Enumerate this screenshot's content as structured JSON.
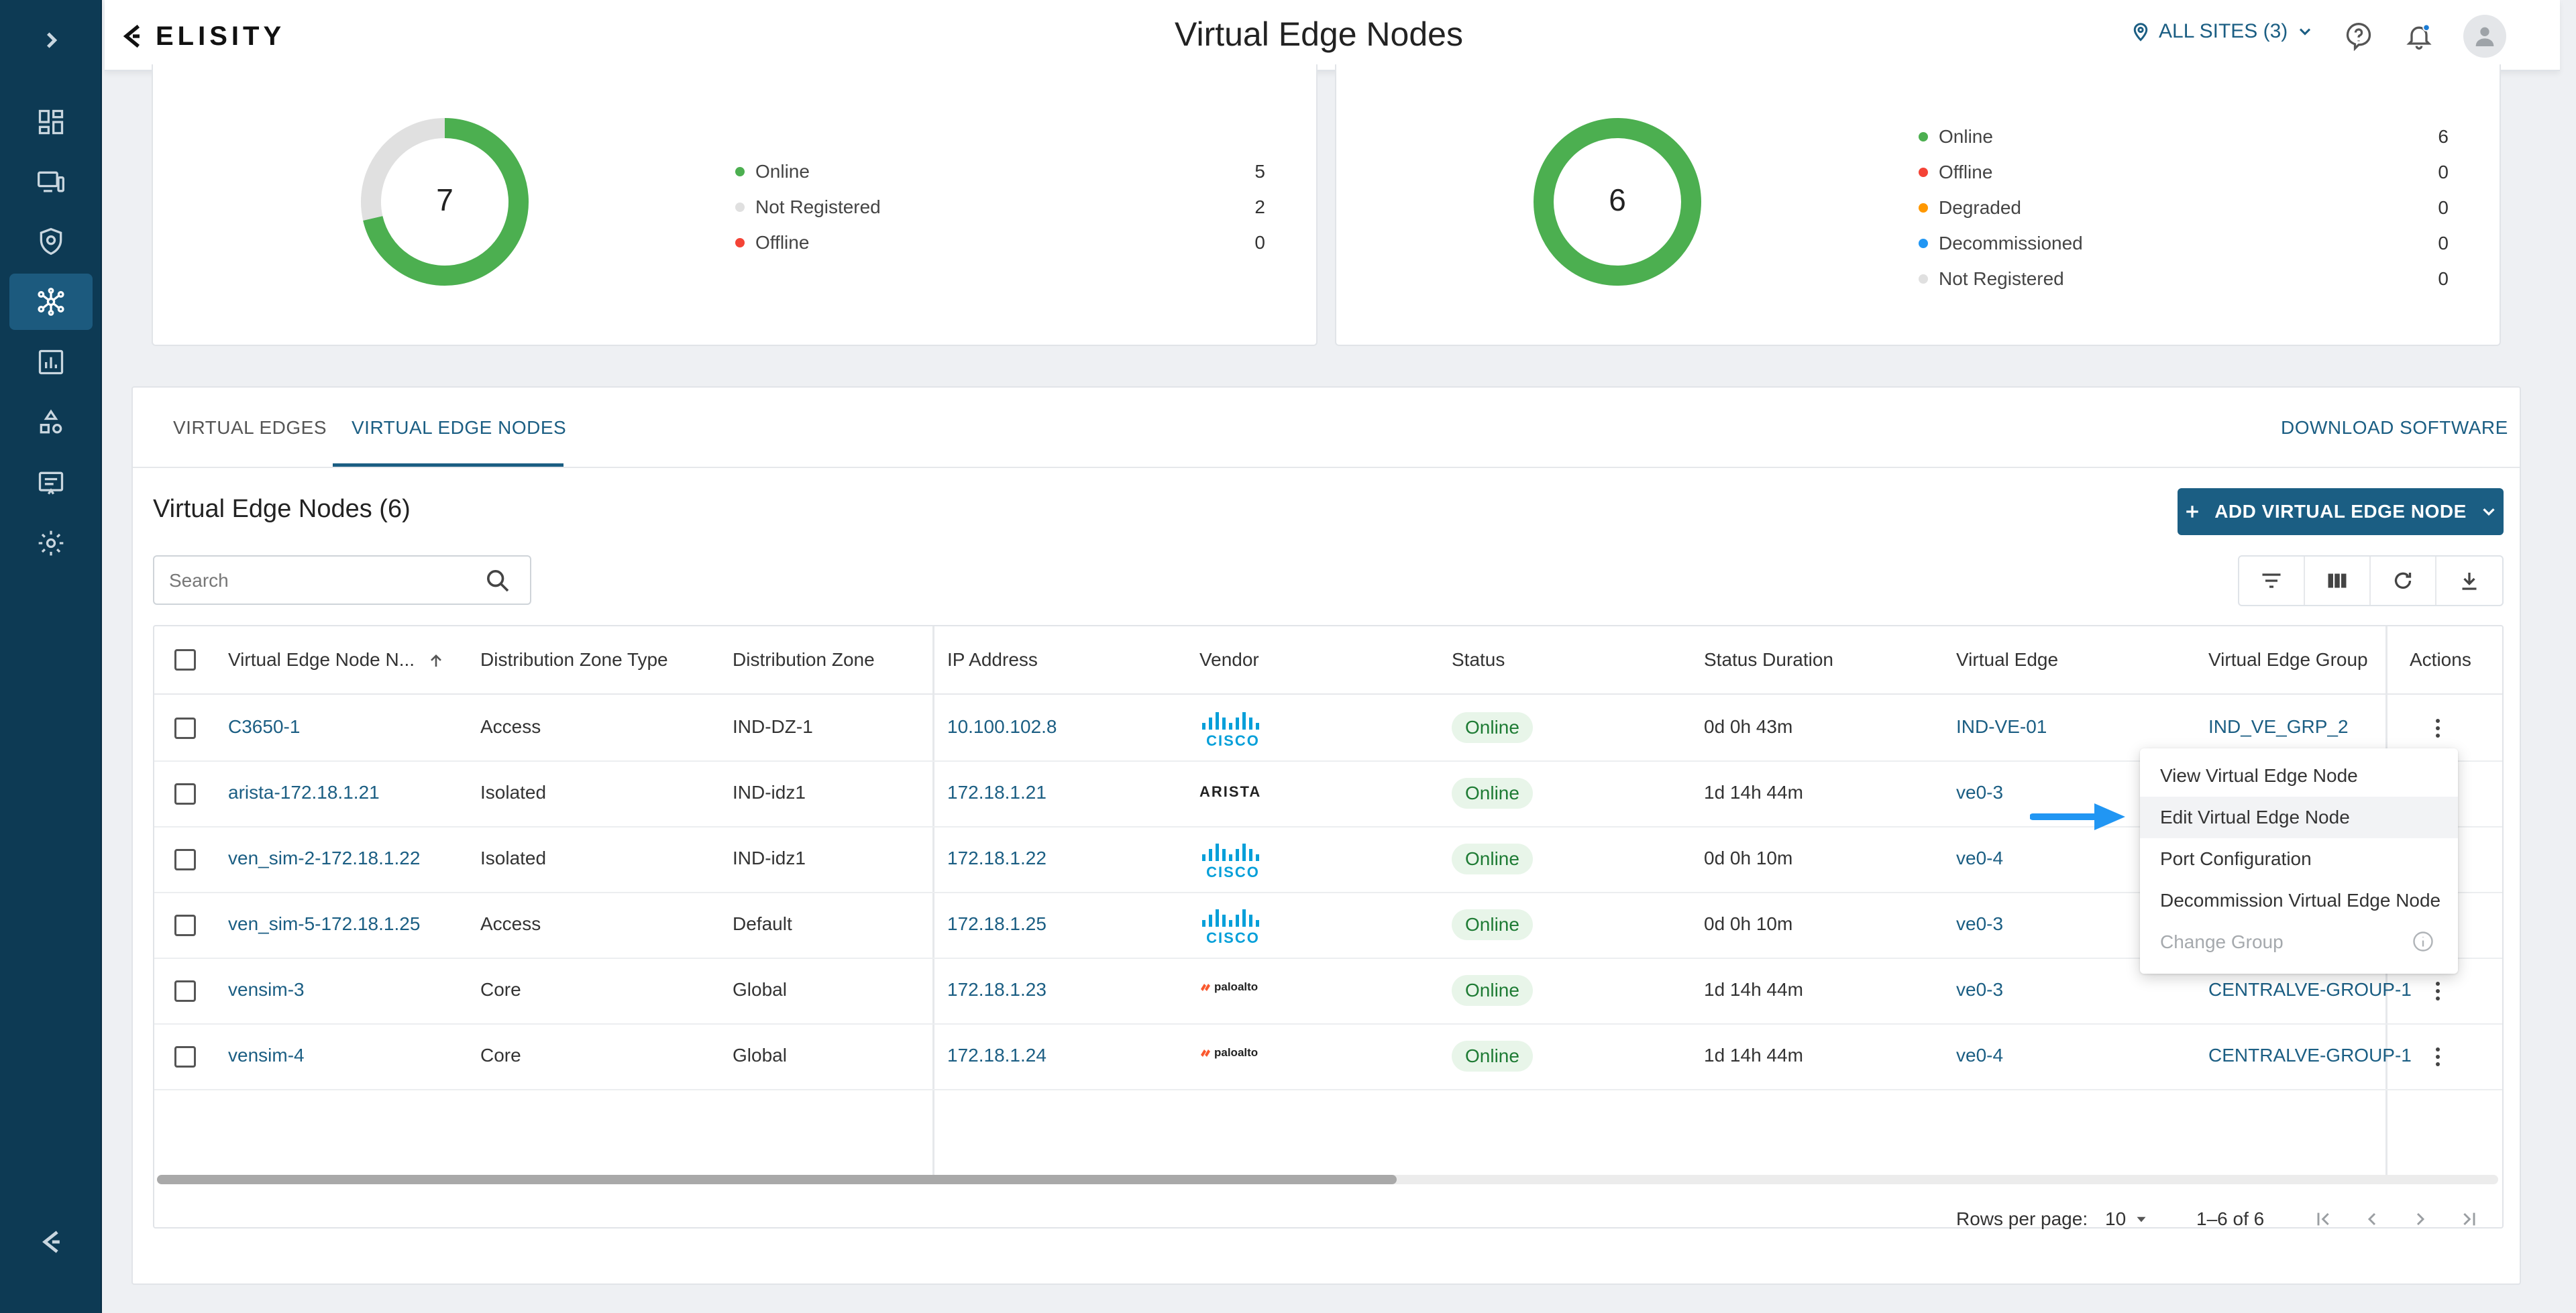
{
  "header": {
    "logo_text": "ELISITY",
    "title": "Virtual Edge Nodes",
    "sites_label": "ALL SITES (3)"
  },
  "summary_left": {
    "total": "7",
    "legend": [
      {
        "label": "Online",
        "count": "5",
        "color": "#4caf50"
      },
      {
        "label": "Not Registered",
        "count": "2",
        "color": "#e0e0e0"
      },
      {
        "label": "Offline",
        "count": "0",
        "color": "#f44336"
      }
    ],
    "chart_data": {
      "type": "pie",
      "categories": [
        "Online",
        "Not Registered",
        "Offline"
      ],
      "values": [
        5,
        2,
        0
      ],
      "center_label": "7"
    }
  },
  "summary_right": {
    "total": "6",
    "legend": [
      {
        "label": "Online",
        "count": "6",
        "color": "#4caf50"
      },
      {
        "label": "Offline",
        "count": "0",
        "color": "#f44336"
      },
      {
        "label": "Degraded",
        "count": "0",
        "color": "#ff9800"
      },
      {
        "label": "Decommissioned",
        "count": "0",
        "color": "#2196f3"
      },
      {
        "label": "Not Registered",
        "count": "0",
        "color": "#e0e0e0"
      }
    ],
    "chart_data": {
      "type": "pie",
      "categories": [
        "Online",
        "Offline",
        "Degraded",
        "Decommissioned",
        "Not Registered"
      ],
      "values": [
        6,
        0,
        0,
        0,
        0
      ],
      "center_label": "6"
    }
  },
  "tabs": [
    {
      "label": "VIRTUAL EDGES",
      "active": false
    },
    {
      "label": "VIRTUAL EDGE NODES",
      "active": true
    }
  ],
  "download_label": "DOWNLOAD SOFTWARE",
  "section_title": "Virtual Edge Nodes (6)",
  "add_button_label": "ADD VIRTUAL EDGE NODE",
  "search": {
    "placeholder": "Search",
    "value": ""
  },
  "table": {
    "columns": [
      "Virtual Edge Node N...",
      "Distribution Zone Type",
      "Distribution Zone",
      "IP Address",
      "Vendor",
      "Status",
      "Status Duration",
      "Virtual Edge",
      "Virtual Edge Group",
      "Actions"
    ],
    "rows": [
      {
        "name": "C3650-1",
        "zone_type": "Access",
        "zone": "IND-DZ-1",
        "ip": "10.100.102.8",
        "vendor": "cisco",
        "status": "Online",
        "duration": "0d 0h 43m",
        "virtual_edge": "IND-VE-01",
        "group": "IND_VE_GRP_2"
      },
      {
        "name": "arista-172.18.1.21",
        "zone_type": "Isolated",
        "zone": "IND-idz1",
        "ip": "172.18.1.21",
        "vendor": "arista",
        "status": "Online",
        "duration": "1d 14h 44m",
        "virtual_edge": "ve0-3",
        "group": ""
      },
      {
        "name": "ven_sim-2-172.18.1.22",
        "zone_type": "Isolated",
        "zone": "IND-idz1",
        "ip": "172.18.1.22",
        "vendor": "cisco",
        "status": "Online",
        "duration": "0d 0h 10m",
        "virtual_edge": "ve0-4",
        "group": ""
      },
      {
        "name": "ven_sim-5-172.18.1.25",
        "zone_type": "Access",
        "zone": "Default",
        "ip": "172.18.1.25",
        "vendor": "cisco",
        "status": "Online",
        "duration": "0d 0h 10m",
        "virtual_edge": "ve0-3",
        "group": ""
      },
      {
        "name": "vensim-3",
        "zone_type": "Core",
        "zone": "Global",
        "ip": "172.18.1.23",
        "vendor": "paloalto",
        "status": "Online",
        "duration": "1d 14h 44m",
        "virtual_edge": "ve0-3",
        "group": "CENTRALVE-GROUP-1"
      },
      {
        "name": "vensim-4",
        "zone_type": "Core",
        "zone": "Global",
        "ip": "172.18.1.24",
        "vendor": "paloalto",
        "status": "Online",
        "duration": "1d 14h 44m",
        "virtual_edge": "ve0-4",
        "group": "CENTRALVE-GROUP-1"
      }
    ]
  },
  "vendor_text": {
    "cisco": "CISCO",
    "arista": "ARISTA",
    "paloalto": "paloalto"
  },
  "actions_menu": [
    {
      "label": "View Virtual Edge Node",
      "state": "normal"
    },
    {
      "label": "Edit Virtual Edge Node",
      "state": "hover"
    },
    {
      "label": "Port Configuration",
      "state": "normal"
    },
    {
      "label": "Decommission Virtual Edge Node",
      "state": "normal"
    },
    {
      "label": "Change Group",
      "state": "disabled"
    }
  ],
  "pagination": {
    "rows_per_page_label": "Rows per page:",
    "rows_per_page": "10",
    "range": "1–6 of 6"
  },
  "colors": {
    "sidebar": "#0d3a54",
    "accent": "#1b5e83",
    "online_green": "#4caf50",
    "arrow_blue": "#2196f3"
  }
}
